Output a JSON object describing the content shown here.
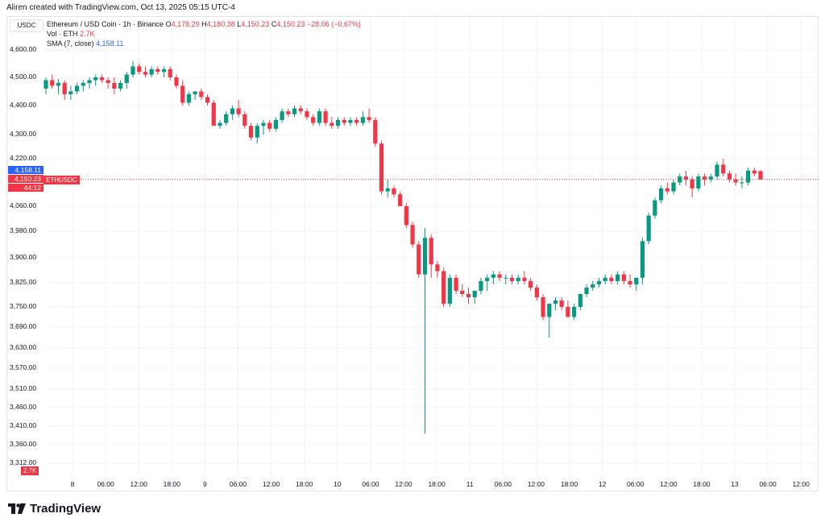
{
  "header": {
    "credit": "Aliren created with TradingView.com, Oct 13, 2025 05:15 UTC-4"
  },
  "legend": {
    "symbol": "Ethereum / USD Coin · 1h · Binance",
    "open_label": "O",
    "open": "4,178.29",
    "high_label": "H",
    "high": "4,180.38",
    "low_label": "L",
    "low": "4,150.23",
    "close_label": "C",
    "close": "4,150.23",
    "change": "−28.06 (−0.67%)",
    "vol_label": "Vol · ETH",
    "vol_value": "2.7K",
    "sma_label": "SMA (7, close)",
    "sma_value": "4,158.11"
  },
  "currency_button": "USDC",
  "price_tags": {
    "sma": "4,158.11",
    "last": "4,150.23",
    "countdown": "44:12",
    "symbol": "ETHUSDC",
    "volume": "2.7K"
  },
  "brand": {
    "name": "TradingView"
  },
  "colors": {
    "up": "#089981",
    "down": "#f23645",
    "sma": "#2962ff",
    "grid": "#f0f3fa"
  },
  "chart_data": {
    "type": "candlestick",
    "title": "Ethereum / USD Coin · 1h · Binance",
    "y_ticks": [
      "4,600.00",
      "4,500.00",
      "4,400.00",
      "4,300.00",
      "4,220.00",
      "4,060.00",
      "3,980.00",
      "3,900.00",
      "3,825.00",
      "3,750.00",
      "3,690.00",
      "3,630.00",
      "3,570.00",
      "3,510.00",
      "3,460.00",
      "3,410.00",
      "3,360.00",
      "3,312.00"
    ],
    "x_ticks": [
      "8",
      "06:00",
      "12:00",
      "18:00",
      "9",
      "06:00",
      "12:00",
      "18:00",
      "10",
      "06:00",
      "12:00",
      "18:00",
      "11",
      "06:00",
      "12:00",
      "18:00",
      "12",
      "06:00",
      "12:00",
      "18:00",
      "13",
      "06:00",
      "12:00"
    ],
    "last_price": 4150.23,
    "candles": [
      [
        4460,
        4500,
        4440,
        4490
      ],
      [
        4490,
        4510,
        4460,
        4470
      ],
      [
        4470,
        4495,
        4440,
        4480
      ],
      [
        4480,
        4490,
        4420,
        4440
      ],
      [
        4440,
        4470,
        4420,
        4450
      ],
      [
        4450,
        4480,
        4440,
        4470
      ],
      [
        4470,
        4490,
        4450,
        4480
      ],
      [
        4480,
        4500,
        4460,
        4490
      ],
      [
        4490,
        4510,
        4470,
        4500
      ],
      [
        4500,
        4510,
        4480,
        4490
      ],
      [
        4490,
        4500,
        4460,
        4480
      ],
      [
        4480,
        4500,
        4440,
        4460
      ],
      [
        4460,
        4490,
        4450,
        4480
      ],
      [
        4480,
        4520,
        4460,
        4510
      ],
      [
        4510,
        4560,
        4500,
        4540
      ],
      [
        4540,
        4550,
        4510,
        4520
      ],
      [
        4520,
        4540,
        4500,
        4510
      ],
      [
        4510,
        4540,
        4500,
        4530
      ],
      [
        4530,
        4540,
        4510,
        4520
      ],
      [
        4520,
        4540,
        4500,
        4530
      ],
      [
        4530,
        4540,
        4490,
        4500
      ],
      [
        4500,
        4510,
        4460,
        4470
      ],
      [
        4470,
        4490,
        4400,
        4410
      ],
      [
        4410,
        4450,
        4400,
        4440
      ],
      [
        4440,
        4450,
        4420,
        4450
      ],
      [
        4450,
        4460,
        4420,
        4430
      ],
      [
        4430,
        4440,
        4400,
        4410
      ],
      [
        4410,
        4420,
        4330,
        4330
      ],
      [
        4330,
        4350,
        4320,
        4340
      ],
      [
        4340,
        4380,
        4330,
        4370
      ],
      [
        4370,
        4400,
        4350,
        4390
      ],
      [
        4390,
        4420,
        4360,
        4370
      ],
      [
        4370,
        4380,
        4320,
        4330
      ],
      [
        4330,
        4340,
        4280,
        4290
      ],
      [
        4290,
        4340,
        4270,
        4330
      ],
      [
        4330,
        4350,
        4300,
        4340
      ],
      [
        4340,
        4350,
        4310,
        4320
      ],
      [
        4320,
        4360,
        4310,
        4350
      ],
      [
        4350,
        4390,
        4340,
        4380
      ],
      [
        4380,
        4390,
        4360,
        4370
      ],
      [
        4370,
        4400,
        4360,
        4390
      ],
      [
        4390,
        4400,
        4370,
        4380
      ],
      [
        4380,
        4390,
        4350,
        4360
      ],
      [
        4360,
        4370,
        4330,
        4340
      ],
      [
        4340,
        4390,
        4330,
        4380
      ],
      [
        4380,
        4390,
        4330,
        4340
      ],
      [
        4340,
        4360,
        4320,
        4330
      ],
      [
        4330,
        4360,
        4320,
        4350
      ],
      [
        4350,
        4360,
        4330,
        4340
      ],
      [
        4340,
        4360,
        4330,
        4350
      ],
      [
        4350,
        4360,
        4330,
        4340
      ],
      [
        4340,
        4380,
        4330,
        4360
      ],
      [
        4360,
        4390,
        4340,
        4350
      ],
      [
        4350,
        4360,
        4260,
        4270
      ],
      [
        4270,
        4280,
        4100,
        4110
      ],
      [
        4110,
        4150,
        4090,
        4120
      ],
      [
        4120,
        4130,
        4090,
        4100
      ],
      [
        4100,
        4110,
        4060,
        4060
      ],
      [
        4060,
        4070,
        3990,
        4000
      ],
      [
        4000,
        4010,
        3930,
        3940
      ],
      [
        3940,
        3950,
        3840,
        3850
      ],
      [
        3850,
        3990,
        3390,
        3960
      ],
      [
        3960,
        3970,
        3840,
        3880
      ],
      [
        3880,
        3890,
        3840,
        3860
      ],
      [
        3860,
        3870,
        3750,
        3760
      ],
      [
        3760,
        3850,
        3750,
        3840
      ],
      [
        3840,
        3850,
        3790,
        3800
      ],
      [
        3800,
        3820,
        3780,
        3790
      ],
      [
        3790,
        3810,
        3760,
        3780
      ],
      [
        3780,
        3790,
        3760,
        3800
      ],
      [
        3800,
        3840,
        3790,
        3830
      ],
      [
        3830,
        3850,
        3800,
        3840
      ],
      [
        3840,
        3860,
        3820,
        3850
      ],
      [
        3850,
        3860,
        3830,
        3840
      ],
      [
        3840,
        3850,
        3820,
        3840
      ],
      [
        3840,
        3850,
        3820,
        3830
      ],
      [
        3830,
        3850,
        3820,
        3840
      ],
      [
        3840,
        3860,
        3820,
        3830
      ],
      [
        3830,
        3840,
        3800,
        3810
      ],
      [
        3810,
        3820,
        3770,
        3780
      ],
      [
        3780,
        3790,
        3710,
        3720
      ],
      [
        3720,
        3760,
        3660,
        3760
      ],
      [
        3760,
        3780,
        3740,
        3770
      ],
      [
        3770,
        3780,
        3740,
        3750
      ],
      [
        3750,
        3770,
        3720,
        3720
      ],
      [
        3720,
        3760,
        3710,
        3750
      ],
      [
        3750,
        3790,
        3740,
        3790
      ],
      [
        3790,
        3820,
        3780,
        3810
      ],
      [
        3810,
        3830,
        3800,
        3820
      ],
      [
        3820,
        3840,
        3810,
        3830
      ],
      [
        3830,
        3850,
        3820,
        3840
      ],
      [
        3840,
        3850,
        3820,
        3830
      ],
      [
        3830,
        3860,
        3820,
        3850
      ],
      [
        3850,
        3860,
        3820,
        3830
      ],
      [
        3830,
        3850,
        3810,
        3820
      ],
      [
        3820,
        3840,
        3800,
        3840
      ],
      [
        3840,
        3960,
        3820,
        3950
      ],
      [
        3950,
        4040,
        3940,
        4030
      ],
      [
        4030,
        4090,
        4020,
        4080
      ],
      [
        4080,
        4130,
        4070,
        4120
      ],
      [
        4120,
        4140,
        4100,
        4110
      ],
      [
        4110,
        4150,
        4100,
        4140
      ],
      [
        4140,
        4170,
        4130,
        4160
      ],
      [
        4160,
        4180,
        4130,
        4150
      ],
      [
        4150,
        4160,
        4090,
        4120
      ],
      [
        4120,
        4170,
        4110,
        4160
      ],
      [
        4160,
        4170,
        4130,
        4150
      ],
      [
        4150,
        4170,
        4140,
        4160
      ],
      [
        4160,
        4210,
        4150,
        4200
      ],
      [
        4200,
        4220,
        4160,
        4170
      ],
      [
        4170,
        4180,
        4140,
        4150
      ],
      [
        4150,
        4170,
        4130,
        4140
      ],
      [
        4140,
        4160,
        4120,
        4140
      ],
      [
        4140,
        4190,
        4130,
        4180
      ],
      [
        4180,
        4190,
        4160,
        4170
      ],
      [
        4178.29,
        4180.38,
        4150.23,
        4150.23
      ]
    ]
  }
}
